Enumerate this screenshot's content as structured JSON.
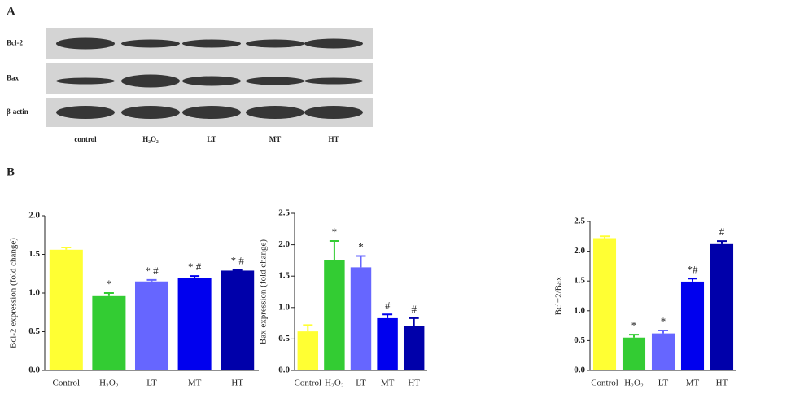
{
  "panel_a": {
    "label": "A",
    "rows": [
      "Bcl-2",
      "Bax",
      "β-actin"
    ],
    "lanes": [
      "control",
      "H₂O₂",
      "LT",
      "MT",
      "HT"
    ]
  },
  "panel_b": {
    "label": "B"
  },
  "chart_data": [
    {
      "type": "bar",
      "ylabel": "Bcl-2 expression (fold change)",
      "categories": [
        "Control",
        "H₂O₂",
        "LT",
        "MT",
        "HT"
      ],
      "values": [
        1.56,
        0.96,
        1.15,
        1.2,
        1.29
      ],
      "errors": [
        0.03,
        0.04,
        0.02,
        0.02,
        0.01
      ],
      "annotations": [
        null,
        "*",
        "* #",
        "* #",
        "* #"
      ],
      "colors": [
        "#ffff33",
        "#33cc33",
        "#6666ff",
        "#0000ee",
        "#0000aa"
      ],
      "ylim": [
        0,
        2
      ],
      "yticks": [
        {
          "value": 0,
          "label": "0.0"
        },
        {
          "value": 0.5,
          "label": "0.5"
        },
        {
          "value": 1,
          "label": "1.0"
        },
        {
          "value": 1.5,
          "label": "1.5"
        },
        {
          "value": 2,
          "label": "2.0"
        }
      ]
    },
    {
      "type": "bar",
      "ylabel": "Bax expression (fold change)",
      "categories": [
        "Control",
        "H₂O₂",
        "LT",
        "MT",
        "HT"
      ],
      "values": [
        0.62,
        1.76,
        1.64,
        0.83,
        0.7
      ],
      "errors": [
        0.1,
        0.3,
        0.18,
        0.06,
        0.13
      ],
      "annotations": [
        null,
        "*",
        "*",
        "#",
        "#"
      ],
      "colors": [
        "#ffff33",
        "#33cc33",
        "#6666ff",
        "#0000ee",
        "#0000aa"
      ],
      "ylim": [
        0,
        2.5
      ],
      "yticks": [
        {
          "value": 0,
          "label": "0.0"
        },
        {
          "value": 0.5,
          "label": "0.5"
        },
        {
          "value": 1,
          "label": "1.0"
        },
        {
          "value": 1.5,
          "label": "1.5"
        },
        {
          "value": 2,
          "label": "2.0"
        },
        {
          "value": 2.5,
          "label": "2.5"
        }
      ]
    },
    {
      "type": "bar",
      "ylabel": "Bcl−2/Bax",
      "categories": [
        "Control",
        "H₂O₂",
        "LT",
        "MT",
        "HT"
      ],
      "values": [
        2.22,
        0.55,
        0.62,
        1.49,
        2.12
      ],
      "errors": [
        0.03,
        0.05,
        0.05,
        0.05,
        0.05
      ],
      "annotations": [
        null,
        "*",
        "*",
        "*#",
        "#"
      ],
      "colors": [
        "#ffff33",
        "#33cc33",
        "#6666ff",
        "#0000ee",
        "#0000aa"
      ],
      "ylim": [
        0,
        2.5
      ],
      "yticks": [
        {
          "value": 0,
          "label": "0.0"
        },
        {
          "value": 0.5,
          "label": "0.5"
        },
        {
          "value": 1,
          "label": "1.0"
        },
        {
          "value": 1.5,
          "label": "1.5"
        },
        {
          "value": 2,
          "label": "2.0"
        },
        {
          "value": 2.5,
          "label": "2.5"
        }
      ]
    }
  ]
}
